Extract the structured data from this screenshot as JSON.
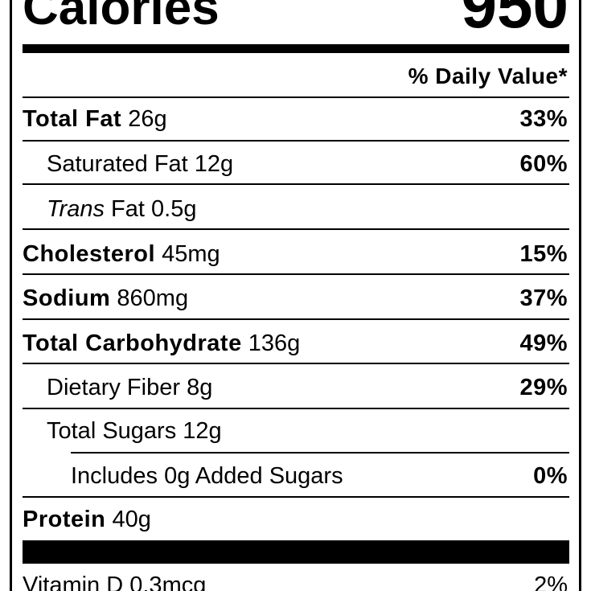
{
  "header": {
    "calories_label": "Calories",
    "calories_value": "950",
    "daily_value_heading": "% Daily Value*"
  },
  "rows": [
    {
      "name": "Total Fat",
      "amount": "26g",
      "dv": "33%"
    },
    {
      "name": "Saturated Fat",
      "amount": "12g",
      "dv": "60%"
    },
    {
      "name_prefix": "Trans",
      "name": "Fat",
      "amount": "0.5g"
    },
    {
      "name": "Cholesterol",
      "amount": "45mg",
      "dv": "15%"
    },
    {
      "name": "Sodium",
      "amount": "860mg",
      "dv": "37%"
    },
    {
      "name": "Total Carbohydrate",
      "amount": "136g",
      "dv": "49%"
    },
    {
      "name": "Dietary Fiber",
      "amount": "8g",
      "dv": "29%"
    },
    {
      "name": "Total Sugars",
      "amount": "12g"
    },
    {
      "name": "Includes 0g Added Sugars",
      "dv": "0%"
    },
    {
      "name": "Protein",
      "amount": "40g"
    },
    {
      "name": "Vitamin D",
      "amount": "0.3mcg",
      "dv": "2%"
    }
  ]
}
